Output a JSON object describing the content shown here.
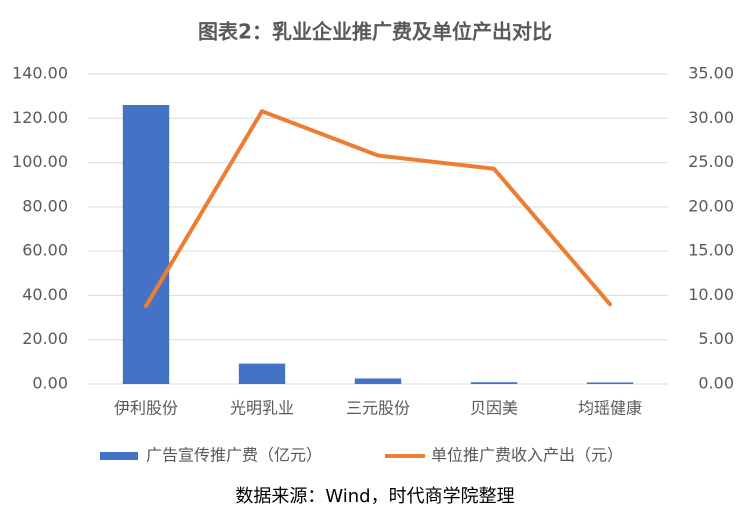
{
  "chart_data": {
    "type": "bar",
    "title": "图表2：乳业企业推广费及单位产出对比",
    "note": "数据来源：Wind，时代商学院整理",
    "categories": [
      "伊利股份",
      "光明乳业",
      "三元股份",
      "贝因美",
      "均瑶健康"
    ],
    "series": [
      {
        "name": "广告宣传推广费（亿元）",
        "type": "bar",
        "color": "#4472c4",
        "values": [
          126,
          9.2,
          2.5,
          0.8,
          0.7
        ]
      },
      {
        "name": "单位推广费收入产出（元）",
        "type": "line",
        "axis": "y2",
        "color": "#ed7d31",
        "values": [
          8.8,
          30.8,
          25.8,
          24.3,
          9.0
        ]
      }
    ],
    "ylim": [
      0,
      140
    ],
    "yticks": [
      {
        "value": 0,
        "label": "0.00"
      },
      {
        "value": 20,
        "label": "20.00"
      },
      {
        "value": 40,
        "label": "40.00"
      },
      {
        "value": 60,
        "label": "60.00"
      },
      {
        "value": 80,
        "label": "80.00"
      },
      {
        "value": 100,
        "label": "100.00"
      },
      {
        "value": 120,
        "label": "120.00"
      },
      {
        "value": 140,
        "label": "140.00"
      }
    ],
    "y2lim": [
      0,
      35
    ],
    "y2ticks": [
      {
        "value": 0,
        "label": "0.00"
      },
      {
        "value": 5,
        "label": "5.00"
      },
      {
        "value": 10,
        "label": "10.00"
      },
      {
        "value": 15,
        "label": "15.00"
      },
      {
        "value": 20,
        "label": "20.00"
      },
      {
        "value": 25,
        "label": "25.00"
      },
      {
        "value": 30,
        "label": "30.00"
      },
      {
        "value": 35,
        "label": "35.00"
      }
    ],
    "grid": true,
    "legend": "bottom"
  }
}
